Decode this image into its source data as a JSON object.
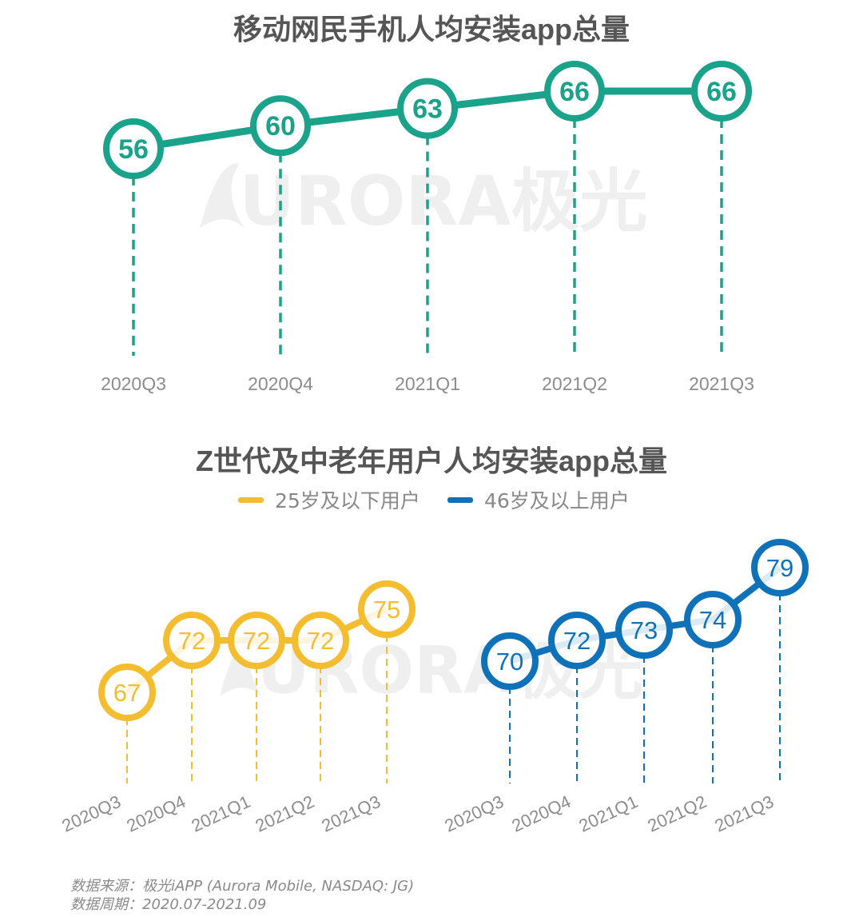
{
  "colors": {
    "teal": "#1aa38a",
    "yellow": "#f4bd30",
    "blue": "#0f72b8",
    "axis_text": "#8c8c8c",
    "title_text": "#555555"
  },
  "watermark": "URORA极光",
  "chart_data": [
    {
      "type": "line",
      "title": "移动网民手机人均安装app总量",
      "categories": [
        "2020Q3",
        "2020Q4",
        "2021Q1",
        "2021Q2",
        "2021Q3"
      ],
      "series": [
        {
          "values": [
            56,
            60,
            63,
            66,
            66
          ]
        }
      ],
      "grid": false
    },
    {
      "type": "line",
      "title": "Z世代及中老年用户人均安装app总量",
      "legend": [
        "25岁及以下用户",
        "46岁及以上用户"
      ],
      "legend_position": "top-center",
      "categories": [
        "2020Q3",
        "2020Q4",
        "2021Q1",
        "2021Q2",
        "2021Q3"
      ],
      "series": [
        {
          "name": "25岁及以下用户",
          "values": [
            67,
            72,
            72,
            72,
            75
          ]
        },
        {
          "name": "46岁及以上用户",
          "values": [
            70,
            72,
            73,
            74,
            79
          ]
        }
      ],
      "grid": false
    }
  ],
  "source": {
    "line1": "数据来源：极光iAPP (Aurora Mobile, NASDAQ: JG)",
    "line2": "数据周期：2020.07-2021.09"
  }
}
